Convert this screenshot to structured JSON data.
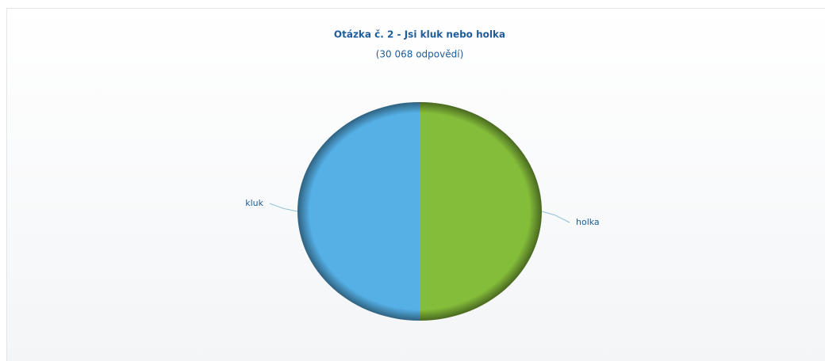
{
  "chart_data": {
    "type": "pie",
    "title": "Otázka č. 2 - Jsi kluk nebo holka",
    "subtitle": "(30 068 odpovědí)",
    "categories": [
      "holka",
      "kluk"
    ],
    "values": [
      50,
      50
    ],
    "colors": [
      "#84bd3a",
      "#55b0e6"
    ]
  }
}
